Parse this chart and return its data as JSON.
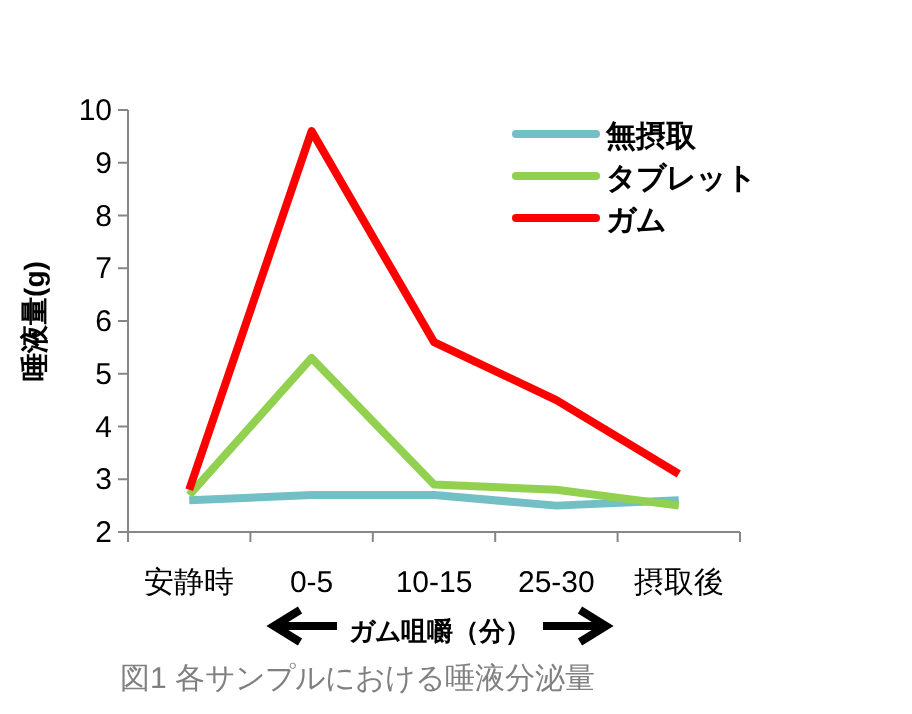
{
  "chart_data": {
    "type": "line",
    "xlabel": "ガム咀嚼（分）",
    "ylabel": "唾液量(g)",
    "categories": [
      "安静時",
      "0-5",
      "10-15",
      "25-30",
      "摂取後"
    ],
    "series": [
      {
        "name": "無摂取",
        "color": "#72bfc6",
        "values": [
          2.6,
          2.7,
          2.7,
          2.5,
          2.6
        ]
      },
      {
        "name": "タブレット",
        "color": "#92d050",
        "values": [
          2.7,
          5.3,
          2.9,
          2.8,
          2.5
        ]
      },
      {
        "name": "ガム",
        "color": "#ff0000",
        "values": [
          2.8,
          9.6,
          5.6,
          4.5,
          3.1
        ]
      }
    ],
    "ylim": [
      2,
      10
    ],
    "yticks": [
      2,
      3,
      4,
      5,
      6,
      7,
      8,
      9,
      10
    ],
    "grid": false,
    "legend": "top right",
    "marker": "none",
    "line_style": "solid",
    "annotations": [
      "図1 各サンプルにおける唾液分泌量"
    ]
  }
}
